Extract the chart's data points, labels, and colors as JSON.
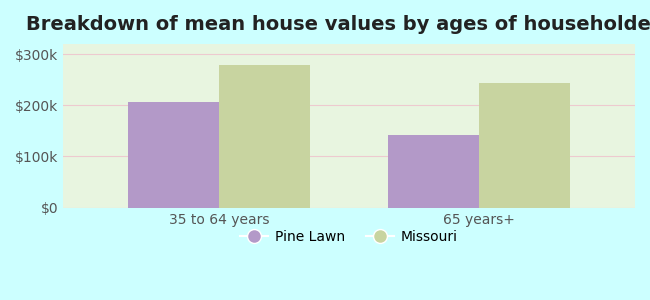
{
  "title": "Breakdown of mean house values by ages of householders",
  "categories": [
    "35 to 64 years",
    "65 years+"
  ],
  "series": [
    {
      "label": "Pine Lawn",
      "values": [
        207000,
        142000
      ],
      "color": "#b399c8"
    },
    {
      "label": "Missouri",
      "values": [
        278000,
        243000
      ],
      "color": "#c8d4a0"
    }
  ],
  "ylim": [
    0,
    320000
  ],
  "yticks": [
    0,
    100000,
    200000,
    300000
  ],
  "ytick_labels": [
    "$0",
    "$100k",
    "$200k",
    "$300k"
  ],
  "bar_width": 0.35,
  "background_color": "#ccffff",
  "plot_bg_color": "#e8f5e0",
  "title_fontsize": 14,
  "tick_fontsize": 10,
  "legend_fontsize": 10,
  "grid_color": "#f0b8c8",
  "grid_alpha": 0.7
}
